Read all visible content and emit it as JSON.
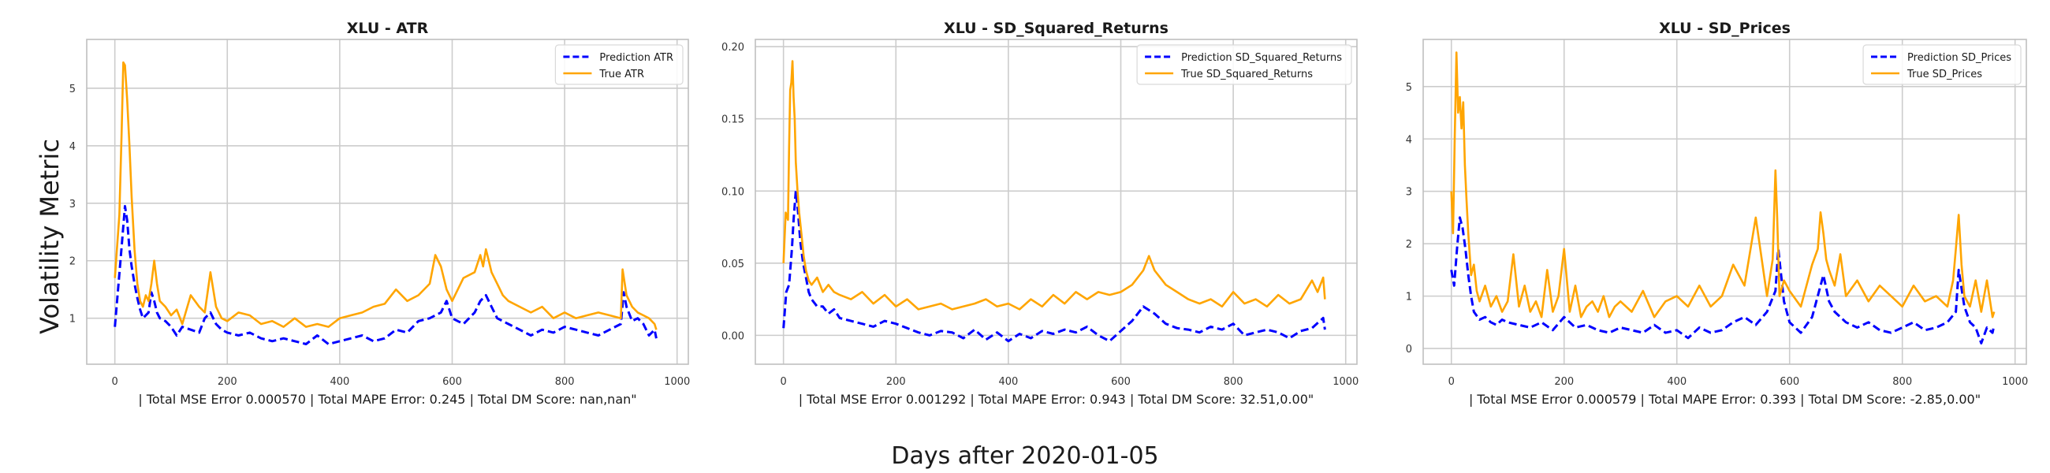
{
  "figure": {
    "supxlabel": "Days after 2020-01-05",
    "supylabel": "Volatility Metric",
    "colors": {
      "prediction": "#0000ff",
      "true": "#ffa500",
      "grid": "#cccccc",
      "spine": "#bfbfbf"
    }
  },
  "chart_data": [
    {
      "type": "line",
      "title": "XLU - ATR",
      "xlabel": "| Total MSE Error 0.000570 | Total MAPE Error: 0.245 | Total DM Score: nan,nan\"",
      "xlim": [
        -50,
        1020
      ],
      "ylim": [
        0.2,
        5.85
      ],
      "xticks": [
        0,
        200,
        400,
        600,
        800,
        1000
      ],
      "yticks": [
        1,
        2,
        3,
        4,
        5
      ],
      "ytick_labels": [
        "1",
        "2",
        "3",
        "4",
        "5"
      ],
      "legend": "top-right",
      "grid": true,
      "series": [
        {
          "name": "Prediction ATR",
          "style": "dashed",
          "color": "#0000ff",
          "x": [
            0,
            10,
            18,
            22,
            26,
            30,
            35,
            40,
            45,
            50,
            60,
            65,
            70,
            75,
            80,
            90,
            100,
            110,
            120,
            135,
            150,
            160,
            170,
            180,
            190,
            200,
            220,
            240,
            260,
            280,
            300,
            320,
            340,
            360,
            380,
            400,
            420,
            440,
            460,
            480,
            500,
            520,
            540,
            560,
            580,
            590,
            600,
            620,
            640,
            650,
            660,
            670,
            680,
            700,
            720,
            740,
            760,
            780,
            800,
            820,
            840,
            860,
            880,
            900,
            905,
            910,
            920,
            930,
            940,
            950,
            960,
            963
          ],
          "y": [
            0.85,
            2.0,
            2.95,
            2.7,
            2.2,
            1.9,
            1.6,
            1.35,
            1.15,
            1.0,
            1.1,
            1.45,
            1.3,
            1.1,
            1.0,
            0.95,
            0.85,
            0.7,
            0.85,
            0.8,
            0.75,
            1.0,
            1.1,
            0.9,
            0.8,
            0.75,
            0.7,
            0.75,
            0.65,
            0.6,
            0.65,
            0.6,
            0.55,
            0.7,
            0.55,
            0.6,
            0.65,
            0.7,
            0.6,
            0.65,
            0.8,
            0.75,
            0.95,
            1.0,
            1.1,
            1.3,
            1.0,
            0.9,
            1.1,
            1.3,
            1.4,
            1.2,
            1.0,
            0.9,
            0.8,
            0.7,
            0.8,
            0.75,
            0.85,
            0.8,
            0.75,
            0.7,
            0.8,
            0.9,
            1.45,
            1.2,
            0.95,
            1.0,
            0.9,
            0.7,
            0.8,
            0.65
          ]
        },
        {
          "name": "True ATR",
          "style": "solid",
          "color": "#ffa500",
          "x": [
            0,
            8,
            12,
            15,
            18,
            22,
            26,
            30,
            35,
            40,
            45,
            50,
            55,
            60,
            65,
            70,
            75,
            80,
            90,
            100,
            110,
            120,
            135,
            150,
            160,
            170,
            180,
            190,
            200,
            220,
            240,
            260,
            280,
            300,
            320,
            340,
            360,
            380,
            400,
            420,
            440,
            460,
            480,
            500,
            520,
            540,
            560,
            570,
            580,
            590,
            600,
            620,
            640,
            650,
            655,
            660,
            665,
            670,
            680,
            690,
            700,
            720,
            740,
            760,
            780,
            800,
            820,
            840,
            860,
            880,
            900,
            903,
            910,
            920,
            930,
            940,
            950,
            960,
            963
          ],
          "y": [
            1.7,
            2.8,
            4.2,
            5.45,
            5.4,
            4.8,
            4.0,
            3.1,
            2.2,
            1.6,
            1.3,
            1.2,
            1.4,
            1.3,
            1.6,
            2.0,
            1.6,
            1.3,
            1.2,
            1.05,
            1.15,
            0.9,
            1.4,
            1.2,
            1.1,
            1.8,
            1.2,
            1.0,
            0.95,
            1.1,
            1.05,
            0.9,
            0.95,
            0.85,
            1.0,
            0.85,
            0.9,
            0.85,
            1.0,
            1.05,
            1.1,
            1.2,
            1.25,
            1.5,
            1.3,
            1.4,
            1.6,
            2.1,
            1.9,
            1.5,
            1.3,
            1.7,
            1.8,
            2.1,
            1.9,
            2.2,
            2.0,
            1.8,
            1.6,
            1.4,
            1.3,
            1.2,
            1.1,
            1.2,
            1.0,
            1.1,
            1.0,
            1.05,
            1.1,
            1.05,
            1.0,
            1.85,
            1.4,
            1.2,
            1.1,
            1.05,
            1.0,
            0.9,
            0.8
          ]
        }
      ]
    },
    {
      "type": "line",
      "title": "XLU - SD_Squared_Returns",
      "xlabel": "| Total MSE Error 0.001292 | Total MAPE Error: 0.943 | Total DM Score: 32.51,0.00\"",
      "xlim": [
        -50,
        1020
      ],
      "ylim": [
        -0.02,
        0.205
      ],
      "xticks": [
        0,
        200,
        400,
        600,
        800,
        1000
      ],
      "yticks": [
        0.0,
        0.05,
        0.1,
        0.15,
        0.2
      ],
      "ytick_labels": [
        "0.00",
        "0.05",
        "0.10",
        "0.15",
        "0.20"
      ],
      "legend": "top-right",
      "grid": true,
      "series": [
        {
          "name": "Prediction SD_Squared_Returns",
          "style": "dashed",
          "color": "#0000ff",
          "x": [
            0,
            5,
            10,
            15,
            18,
            22,
            26,
            30,
            35,
            40,
            45,
            50,
            60,
            70,
            80,
            90,
            100,
            120,
            140,
            160,
            180,
            200,
            220,
            240,
            260,
            280,
            300,
            320,
            340,
            360,
            380,
            400,
            420,
            440,
            460,
            480,
            500,
            520,
            540,
            560,
            580,
            600,
            620,
            640,
            660,
            680,
            700,
            720,
            740,
            760,
            780,
            800,
            820,
            840,
            860,
            880,
            900,
            920,
            940,
            960,
            963
          ],
          "y": [
            0.005,
            0.03,
            0.035,
            0.06,
            0.08,
            0.1,
            0.085,
            0.065,
            0.05,
            0.04,
            0.03,
            0.025,
            0.02,
            0.02,
            0.015,
            0.018,
            0.012,
            0.01,
            0.008,
            0.006,
            0.01,
            0.008,
            0.005,
            0.002,
            0.0,
            0.003,
            0.002,
            -0.002,
            0.004,
            -0.003,
            0.002,
            -0.004,
            0.001,
            -0.002,
            0.003,
            0.001,
            0.004,
            0.002,
            0.006,
            0.0,
            -0.004,
            0.003,
            0.01,
            0.02,
            0.015,
            0.008,
            0.005,
            0.004,
            0.002,
            0.006,
            0.004,
            0.008,
            0.0,
            0.002,
            0.004,
            0.002,
            -0.002,
            0.003,
            0.005,
            0.012,
            0.004
          ]
        },
        {
          "name": "True SD_Squared_Returns",
          "style": "solid",
          "color": "#ffa500",
          "x": [
            0,
            4,
            8,
            10,
            12,
            14,
            16,
            18,
            20,
            22,
            25,
            28,
            32,
            36,
            40,
            45,
            50,
            60,
            70,
            80,
            90,
            100,
            120,
            140,
            160,
            180,
            200,
            220,
            240,
            260,
            280,
            300,
            320,
            340,
            360,
            380,
            400,
            420,
            440,
            460,
            480,
            500,
            520,
            540,
            560,
            580,
            600,
            620,
            640,
            650,
            660,
            670,
            680,
            700,
            720,
            740,
            760,
            780,
            800,
            820,
            840,
            860,
            880,
            900,
            920,
            940,
            950,
            960,
            963
          ],
          "y": [
            0.05,
            0.085,
            0.08,
            0.13,
            0.17,
            0.175,
            0.19,
            0.165,
            0.15,
            0.12,
            0.1,
            0.085,
            0.07,
            0.055,
            0.045,
            0.038,
            0.035,
            0.04,
            0.03,
            0.035,
            0.03,
            0.028,
            0.025,
            0.03,
            0.022,
            0.028,
            0.02,
            0.025,
            0.018,
            0.02,
            0.022,
            0.018,
            0.02,
            0.022,
            0.025,
            0.02,
            0.022,
            0.018,
            0.025,
            0.02,
            0.028,
            0.022,
            0.03,
            0.025,
            0.03,
            0.028,
            0.03,
            0.035,
            0.045,
            0.055,
            0.045,
            0.04,
            0.035,
            0.03,
            0.025,
            0.022,
            0.025,
            0.02,
            0.03,
            0.022,
            0.025,
            0.02,
            0.028,
            0.022,
            0.025,
            0.038,
            0.03,
            0.04,
            0.025
          ]
        }
      ]
    },
    {
      "type": "line",
      "title": "XLU - SD_Prices",
      "xlabel": "| Total MSE Error 0.000579 | Total MAPE Error: 0.393 | Total DM Score: -2.85,0.00\"",
      "xlim": [
        -50,
        1020
      ],
      "ylim": [
        -0.3,
        5.9
      ],
      "xticks": [
        0,
        200,
        400,
        600,
        800,
        1000
      ],
      "yticks": [
        0,
        1,
        2,
        3,
        4,
        5
      ],
      "ytick_labels": [
        "0",
        "1",
        "2",
        "3",
        "4",
        "5"
      ],
      "legend": "top-right",
      "grid": true,
      "series": [
        {
          "name": "Prediction SD_Prices",
          "style": "dashed",
          "color": "#0000ff",
          "x": [
            0,
            5,
            10,
            15,
            20,
            25,
            30,
            35,
            40,
            50,
            60,
            70,
            80,
            90,
            100,
            120,
            140,
            160,
            180,
            200,
            220,
            240,
            260,
            280,
            300,
            320,
            340,
            360,
            380,
            400,
            420,
            440,
            460,
            480,
            500,
            520,
            540,
            560,
            575,
            580,
            590,
            600,
            620,
            640,
            655,
            660,
            670,
            680,
            700,
            720,
            740,
            760,
            780,
            800,
            820,
            840,
            860,
            880,
            895,
            900,
            910,
            920,
            930,
            940,
            950,
            960,
            963
          ],
          "y": [
            1.5,
            1.2,
            1.9,
            2.5,
            2.3,
            1.9,
            1.4,
            1.0,
            0.7,
            0.55,
            0.6,
            0.5,
            0.45,
            0.55,
            0.5,
            0.45,
            0.4,
            0.5,
            0.35,
            0.6,
            0.4,
            0.45,
            0.35,
            0.3,
            0.4,
            0.35,
            0.3,
            0.45,
            0.3,
            0.35,
            0.2,
            0.4,
            0.3,
            0.35,
            0.5,
            0.6,
            0.45,
            0.7,
            1.1,
            1.9,
            0.9,
            0.5,
            0.3,
            0.6,
            1.2,
            1.4,
            0.9,
            0.7,
            0.5,
            0.4,
            0.5,
            0.35,
            0.3,
            0.4,
            0.5,
            0.35,
            0.4,
            0.5,
            0.7,
            1.5,
            0.8,
            0.5,
            0.4,
            0.1,
            0.4,
            0.3,
            0.45
          ]
        },
        {
          "name": "True SD_Prices",
          "style": "solid",
          "color": "#ffa500",
          "x": [
            0,
            3,
            6,
            9,
            12,
            15,
            18,
            21,
            24,
            27,
            30,
            35,
            40,
            45,
            50,
            60,
            70,
            80,
            90,
            100,
            110,
            120,
            130,
            140,
            150,
            160,
            170,
            180,
            190,
            200,
            210,
            220,
            230,
            240,
            250,
            260,
            270,
            280,
            290,
            300,
            320,
            340,
            360,
            380,
            400,
            420,
            440,
            460,
            480,
            500,
            520,
            540,
            560,
            570,
            575,
            578,
            582,
            590,
            600,
            620,
            640,
            650,
            655,
            660,
            665,
            670,
            680,
            690,
            700,
            720,
            740,
            760,
            780,
            800,
            820,
            840,
            860,
            880,
            890,
            895,
            900,
            905,
            910,
            920,
            930,
            940,
            950,
            960,
            963
          ],
          "y": [
            3.0,
            2.2,
            4.0,
            5.65,
            4.5,
            4.8,
            4.2,
            4.7,
            3.5,
            2.8,
            2.2,
            1.4,
            1.6,
            1.1,
            0.9,
            1.2,
            0.8,
            1.0,
            0.7,
            0.9,
            1.8,
            0.8,
            1.2,
            0.7,
            0.9,
            0.6,
            1.5,
            0.7,
            1.0,
            1.9,
            0.7,
            1.2,
            0.6,
            0.8,
            0.9,
            0.7,
            1.0,
            0.6,
            0.8,
            0.9,
            0.7,
            1.1,
            0.6,
            0.9,
            1.0,
            0.8,
            1.2,
            0.8,
            1.0,
            1.6,
            1.2,
            2.5,
            1.0,
            1.7,
            3.4,
            2.5,
            1.0,
            1.3,
            1.1,
            0.8,
            1.6,
            1.9,
            2.6,
            2.2,
            1.7,
            1.5,
            1.2,
            1.8,
            1.0,
            1.3,
            0.9,
            1.2,
            1.0,
            0.8,
            1.2,
            0.9,
            1.0,
            0.8,
            1.3,
            1.9,
            2.55,
            1.6,
            1.0,
            0.8,
            1.3,
            0.7,
            1.3,
            0.6,
            0.7
          ]
        }
      ]
    }
  ]
}
